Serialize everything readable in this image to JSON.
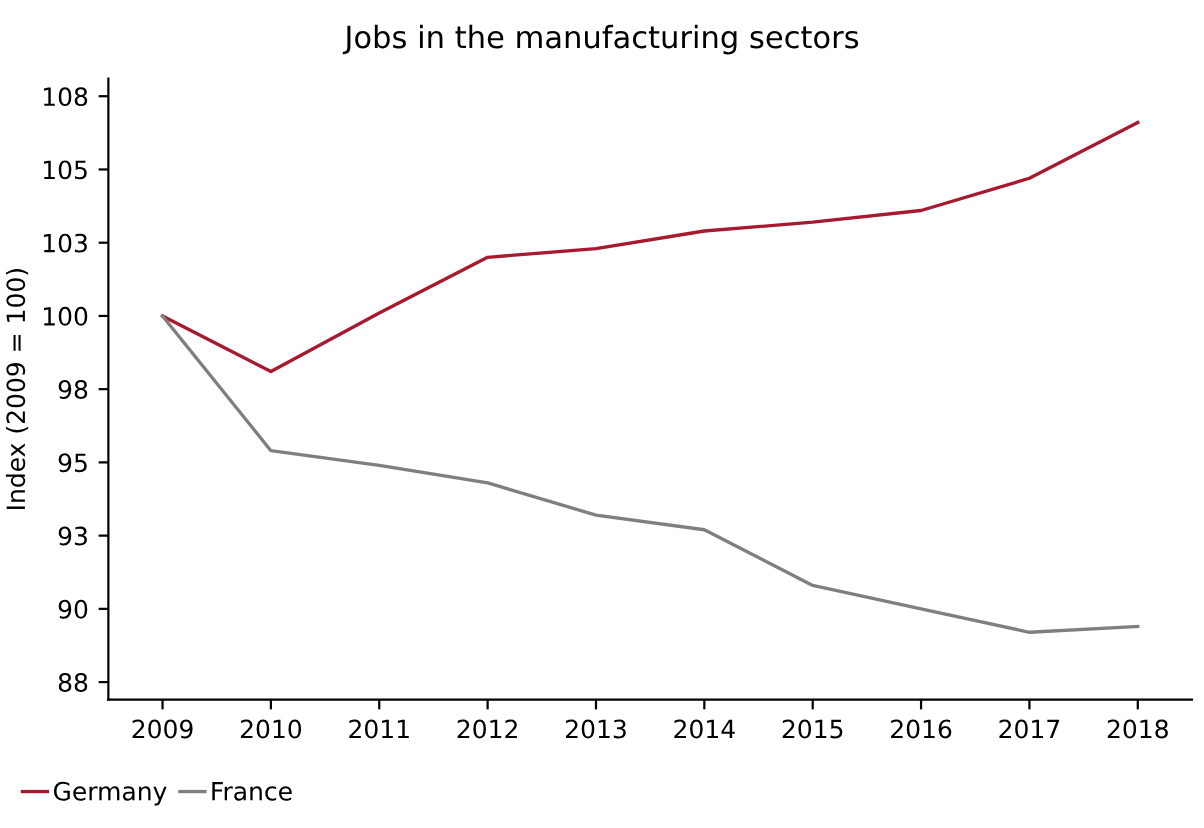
{
  "chart_data": {
    "type": "line",
    "title": "Jobs in the manufacturing sectors",
    "ylabel": "Index (2009 = 100)",
    "categories": [
      "2009",
      "2010",
      "2011",
      "2012",
      "2013",
      "2014",
      "2015",
      "2016",
      "2017",
      "2018"
    ],
    "series": [
      {
        "name": "Germany",
        "color": "#a6192e",
        "values": [
          100,
          98.1,
          100.1,
          102.0,
          102.3,
          102.9,
          103.2,
          103.6,
          104.7,
          106.6
        ]
      },
      {
        "name": "France",
        "color": "#7f7f7f",
        "values": [
          100,
          95.4,
          94.9,
          94.3,
          93.2,
          92.7,
          90.8,
          90.0,
          89.2,
          89.4
        ]
      }
    ],
    "ylim": [
      86.9,
      108.1
    ],
    "yticks": [
      {
        "value": 87.5,
        "label": "88"
      },
      90,
      {
        "value": 92.5,
        "label": "93"
      },
      95,
      {
        "value": 97.5,
        "label": "98"
      },
      100,
      {
        "value": 102.5,
        "label": "103"
      },
      105,
      {
        "value": 107.5,
        "label": "108"
      }
    ],
    "grid": false,
    "legend": "bottom left",
    "marker": "none",
    "line_style": "solid"
  }
}
